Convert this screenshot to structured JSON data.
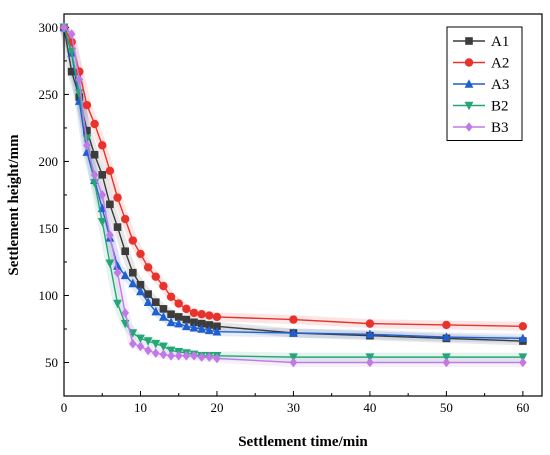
{
  "chart_data": {
    "type": "line",
    "title": "",
    "xlabel": "Settlement time/min",
    "ylabel": "Settlement height/mm",
    "xlim": [
      0,
      62.5
    ],
    "ylim": [
      25,
      310
    ],
    "xticks": [
      0,
      10,
      20,
      30,
      40,
      50,
      60
    ],
    "yticks": [
      50,
      100,
      150,
      200,
      250,
      300
    ],
    "grid": false,
    "legend_position": "top-right",
    "series": [
      {
        "name": "A1",
        "color": "#3c3c3c",
        "marker": "square",
        "x": [
          0,
          1,
          2,
          3,
          4,
          5,
          6,
          7,
          8,
          9,
          10,
          11,
          12,
          13,
          14,
          15,
          16,
          17,
          18,
          19,
          20,
          30,
          40,
          50,
          60
        ],
        "y": [
          300,
          267,
          248,
          223,
          205,
          190,
          168,
          151,
          133,
          117,
          108,
          101,
          95,
          90,
          86,
          84,
          82,
          80,
          79,
          78,
          77,
          72,
          70,
          68,
          66
        ]
      },
      {
        "name": "A2",
        "color": "#e8322c",
        "marker": "circle",
        "x": [
          0,
          1,
          2,
          3,
          4,
          5,
          6,
          7,
          8,
          9,
          10,
          11,
          12,
          13,
          14,
          15,
          16,
          17,
          18,
          19,
          20,
          30,
          40,
          50,
          60
        ],
        "y": [
          300,
          289,
          267,
          242,
          228,
          212,
          193,
          173,
          157,
          141,
          131,
          121,
          114,
          107,
          99,
          94,
          90,
          87,
          86,
          85,
          84,
          82,
          79,
          78,
          77
        ]
      },
      {
        "name": "A3",
        "color": "#1f5fcf",
        "marker": "triangle-up",
        "x": [
          0,
          1,
          2,
          3,
          4,
          5,
          6,
          7,
          8,
          9,
          10,
          11,
          12,
          13,
          14,
          15,
          16,
          17,
          18,
          19,
          20,
          30,
          40,
          50,
          60
        ],
        "y": [
          300,
          281,
          245,
          207,
          186,
          165,
          143,
          122,
          115,
          109,
          103,
          95,
          88,
          84,
          80,
          79,
          77,
          76,
          75,
          74,
          73,
          72,
          71,
          69,
          68
        ]
      },
      {
        "name": "B2",
        "color": "#26a677",
        "marker": "triangle-down",
        "x": [
          0,
          1,
          2,
          3,
          4,
          5,
          6,
          7,
          8,
          9,
          10,
          11,
          12,
          13,
          14,
          15,
          16,
          17,
          18,
          19,
          20,
          30,
          40,
          50,
          60
        ],
        "y": [
          300,
          282,
          251,
          217,
          184,
          155,
          124,
          94,
          79,
          72,
          68,
          66,
          64,
          62,
          59,
          58,
          57,
          56,
          55,
          55,
          55,
          54,
          54,
          54,
          54
        ]
      },
      {
        "name": "B3",
        "color": "#c07ae6",
        "marker": "diamond",
        "x": [
          0,
          1,
          2,
          3,
          4,
          5,
          6,
          7,
          8,
          9,
          10,
          11,
          12,
          13,
          14,
          15,
          16,
          17,
          18,
          19,
          20,
          30,
          40,
          50,
          60
        ],
        "y": [
          300,
          295,
          261,
          212,
          190,
          175,
          145,
          117,
          87,
          64,
          62,
          59,
          57,
          56,
          55,
          55,
          55,
          55,
          54,
          54,
          53,
          50,
          50,
          50,
          50
        ]
      }
    ]
  }
}
